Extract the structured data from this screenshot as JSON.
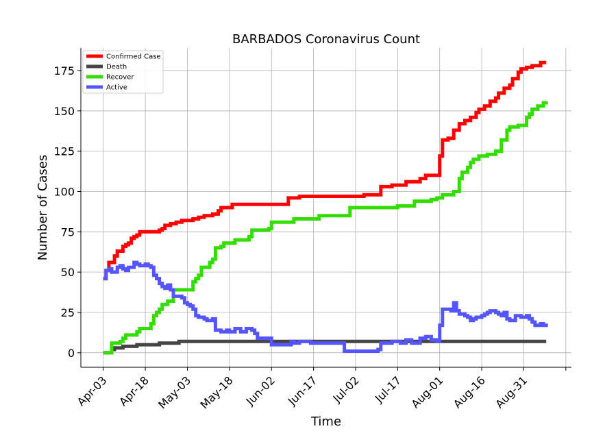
{
  "chart_data": {
    "type": "line",
    "title": "BARBADOS Coronavirus Count",
    "xlabel": "Time",
    "ylabel": "Number of Cases",
    "x_range": [
      "2020-03-26",
      "2020-09-17"
    ],
    "ylim": [
      -9,
      189
    ],
    "x_ticks": [
      {
        "date": "2020-04-03",
        "label": "Apr-03"
      },
      {
        "date": "2020-04-18",
        "label": "Apr-18"
      },
      {
        "date": "2020-05-03",
        "label": "May-03"
      },
      {
        "date": "2020-05-18",
        "label": "May-18"
      },
      {
        "date": "2020-06-02",
        "label": "Jun-02"
      },
      {
        "date": "2020-06-17",
        "label": "Jun-17"
      },
      {
        "date": "2020-07-02",
        "label": "Jul-02"
      },
      {
        "date": "2020-07-17",
        "label": "Jul-17"
      },
      {
        "date": "2020-08-01",
        "label": "Aug-01"
      },
      {
        "date": "2020-08-16",
        "label": "Aug-16"
      },
      {
        "date": "2020-08-31",
        "label": "Aug-31"
      }
    ],
    "y_ticks": [
      0,
      25,
      50,
      75,
      100,
      125,
      150,
      175
    ],
    "grid": true,
    "legend_position": "top-left",
    "series": [
      {
        "name": "Confirmed Case",
        "color": "#ff0000",
        "points": [
          [
            "2020-04-03",
            46
          ],
          [
            "2020-04-04",
            51
          ],
          [
            "2020-04-05",
            56
          ],
          [
            "2020-04-07",
            60
          ],
          [
            "2020-04-08",
            63
          ],
          [
            "2020-04-09",
            63
          ],
          [
            "2020-04-10",
            66
          ],
          [
            "2020-04-11",
            67
          ],
          [
            "2020-04-12",
            68
          ],
          [
            "2020-04-13",
            71
          ],
          [
            "2020-04-14",
            72
          ],
          [
            "2020-04-15",
            73
          ],
          [
            "2020-04-16",
            75
          ],
          [
            "2020-04-20",
            75
          ],
          [
            "2020-04-22",
            75
          ],
          [
            "2020-04-23",
            76
          ],
          [
            "2020-04-24",
            77
          ],
          [
            "2020-04-25",
            79
          ],
          [
            "2020-04-27",
            80
          ],
          [
            "2020-04-29",
            81
          ],
          [
            "2020-05-01",
            82
          ],
          [
            "2020-05-05",
            83
          ],
          [
            "2020-05-07",
            84
          ],
          [
            "2020-05-09",
            85
          ],
          [
            "2020-05-12",
            86
          ],
          [
            "2020-05-14",
            88
          ],
          [
            "2020-05-15",
            90
          ],
          [
            "2020-05-19",
            92
          ],
          [
            "2020-05-30",
            92
          ],
          [
            "2020-06-06",
            92
          ],
          [
            "2020-06-08",
            96
          ],
          [
            "2020-06-12",
            97
          ],
          [
            "2020-06-21",
            97
          ],
          [
            "2020-07-05",
            98
          ],
          [
            "2020-07-11",
            103
          ],
          [
            "2020-07-15",
            104
          ],
          [
            "2020-07-20",
            106
          ],
          [
            "2020-07-25",
            108
          ],
          [
            "2020-07-27",
            110
          ],
          [
            "2020-07-31",
            110
          ],
          [
            "2020-08-01",
            122
          ],
          [
            "2020-08-02",
            132
          ],
          [
            "2020-08-04",
            133
          ],
          [
            "2020-08-06",
            138
          ],
          [
            "2020-08-08",
            142
          ],
          [
            "2020-08-10",
            144
          ],
          [
            "2020-08-12",
            146
          ],
          [
            "2020-08-14",
            149
          ],
          [
            "2020-08-15",
            151
          ],
          [
            "2020-08-17",
            153
          ],
          [
            "2020-08-19",
            156
          ],
          [
            "2020-08-21",
            158
          ],
          [
            "2020-08-22",
            161
          ],
          [
            "2020-08-24",
            164
          ],
          [
            "2020-08-26",
            166
          ],
          [
            "2020-08-27",
            170
          ],
          [
            "2020-08-29",
            174
          ],
          [
            "2020-08-30",
            176
          ],
          [
            "2020-09-01",
            177
          ],
          [
            "2020-09-03",
            178
          ],
          [
            "2020-09-06",
            180
          ],
          [
            "2020-09-08",
            180
          ]
        ]
      },
      {
        "name": "Death",
        "color": "#444444",
        "points": [
          [
            "2020-04-03",
            0
          ],
          [
            "2020-04-04",
            0
          ],
          [
            "2020-04-06",
            2
          ],
          [
            "2020-04-07",
            3
          ],
          [
            "2020-04-10",
            4
          ],
          [
            "2020-04-15",
            5
          ],
          [
            "2020-04-23",
            6
          ],
          [
            "2020-04-30",
            7
          ],
          [
            "2020-05-15",
            7
          ],
          [
            "2020-06-15",
            7
          ],
          [
            "2020-07-15",
            7
          ],
          [
            "2020-08-15",
            7
          ],
          [
            "2020-09-08",
            7
          ]
        ]
      },
      {
        "name": "Recover",
        "color": "#33dd00",
        "points": [
          [
            "2020-04-03",
            0
          ],
          [
            "2020-04-05",
            0
          ],
          [
            "2020-04-06",
            6
          ],
          [
            "2020-04-09",
            7
          ],
          [
            "2020-04-10",
            9
          ],
          [
            "2020-04-11",
            11
          ],
          [
            "2020-04-15",
            13
          ],
          [
            "2020-04-16",
            15
          ],
          [
            "2020-04-19",
            15
          ],
          [
            "2020-04-20",
            18
          ],
          [
            "2020-04-21",
            23
          ],
          [
            "2020-04-22",
            25
          ],
          [
            "2020-04-23",
            27
          ],
          [
            "2020-04-24",
            30
          ],
          [
            "2020-04-26",
            32
          ],
          [
            "2020-04-28",
            35
          ],
          [
            "2020-04-28",
            39
          ],
          [
            "2020-05-04",
            39
          ],
          [
            "2020-05-05",
            44
          ],
          [
            "2020-05-06",
            46
          ],
          [
            "2020-05-07",
            48
          ],
          [
            "2020-05-08",
            53
          ],
          [
            "2020-05-11",
            56
          ],
          [
            "2020-05-12",
            58
          ],
          [
            "2020-05-13",
            65
          ],
          [
            "2020-05-15",
            66
          ],
          [
            "2020-05-16",
            68
          ],
          [
            "2020-05-20",
            70
          ],
          [
            "2020-05-25",
            72
          ],
          [
            "2020-05-26",
            76
          ],
          [
            "2020-06-01",
            77
          ],
          [
            "2020-06-02",
            81
          ],
          [
            "2020-06-10",
            83
          ],
          [
            "2020-06-19",
            85
          ],
          [
            "2020-06-30",
            90
          ],
          [
            "2020-07-16",
            90
          ],
          [
            "2020-07-17",
            91
          ],
          [
            "2020-07-23",
            94
          ],
          [
            "2020-07-29",
            95
          ],
          [
            "2020-07-31",
            96
          ],
          [
            "2020-08-02",
            98
          ],
          [
            "2020-08-06",
            100
          ],
          [
            "2020-08-08",
            108
          ],
          [
            "2020-08-09",
            112
          ],
          [
            "2020-08-11",
            115
          ],
          [
            "2020-08-12",
            118
          ],
          [
            "2020-08-13",
            120
          ],
          [
            "2020-08-15",
            122
          ],
          [
            "2020-08-18",
            123
          ],
          [
            "2020-08-21",
            125
          ],
          [
            "2020-08-23",
            132
          ],
          [
            "2020-08-25",
            138
          ],
          [
            "2020-08-26",
            140
          ],
          [
            "2020-08-29",
            141
          ],
          [
            "2020-09-01",
            146
          ],
          [
            "2020-09-02",
            148
          ],
          [
            "2020-09-03",
            151
          ],
          [
            "2020-09-05",
            153
          ],
          [
            "2020-09-07",
            155
          ],
          [
            "2020-09-08",
            156
          ]
        ]
      },
      {
        "name": "Active",
        "color": "#5555ff",
        "points": [
          [
            "2020-04-03",
            46
          ],
          [
            "2020-04-04",
            51
          ],
          [
            "2020-04-05",
            52
          ],
          [
            "2020-04-06",
            50
          ],
          [
            "2020-04-07",
            50
          ],
          [
            "2020-04-08",
            53
          ],
          [
            "2020-04-09",
            54
          ],
          [
            "2020-04-10",
            52
          ],
          [
            "2020-04-11",
            51
          ],
          [
            "2020-04-12",
            53
          ],
          [
            "2020-04-14",
            56
          ],
          [
            "2020-04-15",
            55
          ],
          [
            "2020-04-16",
            54
          ],
          [
            "2020-04-18",
            55
          ],
          [
            "2020-04-19",
            54
          ],
          [
            "2020-04-20",
            53
          ],
          [
            "2020-04-21",
            48
          ],
          [
            "2020-04-22",
            46
          ],
          [
            "2020-04-23",
            43
          ],
          [
            "2020-04-24",
            41
          ],
          [
            "2020-04-25",
            40
          ],
          [
            "2020-04-26",
            42
          ],
          [
            "2020-04-27",
            39
          ],
          [
            "2020-04-28",
            35
          ],
          [
            "2020-05-01",
            34
          ],
          [
            "2020-05-02",
            31
          ],
          [
            "2020-05-03",
            30
          ],
          [
            "2020-05-04",
            29
          ],
          [
            "2020-05-05",
            27
          ],
          [
            "2020-05-06",
            23
          ],
          [
            "2020-05-07",
            22
          ],
          [
            "2020-05-09",
            21
          ],
          [
            "2020-05-10",
            20
          ],
          [
            "2020-05-12",
            21
          ],
          [
            "2020-05-13",
            14
          ],
          [
            "2020-05-15",
            13
          ],
          [
            "2020-05-16",
            13
          ],
          [
            "2020-05-17",
            14
          ],
          [
            "2020-05-18",
            13
          ],
          [
            "2020-05-20",
            15
          ],
          [
            "2020-05-22",
            13
          ],
          [
            "2020-05-24",
            15
          ],
          [
            "2020-05-26",
            14
          ],
          [
            "2020-05-27",
            12
          ],
          [
            "2020-05-28",
            9
          ],
          [
            "2020-06-01",
            9
          ],
          [
            "2020-06-02",
            5
          ],
          [
            "2020-06-08",
            5
          ],
          [
            "2020-06-09",
            7
          ],
          [
            "2020-06-10",
            6
          ],
          [
            "2020-06-12",
            7
          ],
          [
            "2020-06-16",
            6
          ],
          [
            "2020-06-19",
            6
          ],
          [
            "2020-06-26",
            6
          ],
          [
            "2020-06-28",
            1
          ],
          [
            "2020-07-03",
            1
          ],
          [
            "2020-07-04",
            1
          ],
          [
            "2020-07-10",
            2
          ],
          [
            "2020-07-11",
            6
          ],
          [
            "2020-07-15",
            7
          ],
          [
            "2020-07-16",
            7
          ],
          [
            "2020-07-18",
            6
          ],
          [
            "2020-07-20",
            8
          ],
          [
            "2020-07-22",
            6
          ],
          [
            "2020-07-23",
            6
          ],
          [
            "2020-07-25",
            9
          ],
          [
            "2020-07-27",
            10
          ],
          [
            "2020-07-29",
            8
          ],
          [
            "2020-07-31",
            7
          ],
          [
            "2020-08-01",
            17
          ],
          [
            "2020-08-02",
            27
          ],
          [
            "2020-08-05",
            26
          ],
          [
            "2020-08-06",
            31
          ],
          [
            "2020-08-07",
            26
          ],
          [
            "2020-08-08",
            24
          ],
          [
            "2020-08-09",
            24
          ],
          [
            "2020-08-10",
            23
          ],
          [
            "2020-08-11",
            22
          ],
          [
            "2020-08-12",
            20
          ],
          [
            "2020-08-13",
            21
          ],
          [
            "2020-08-14",
            22
          ],
          [
            "2020-08-16",
            23
          ],
          [
            "2020-08-17",
            24
          ],
          [
            "2020-08-18",
            25
          ],
          [
            "2020-08-19",
            26
          ],
          [
            "2020-08-21",
            25
          ],
          [
            "2020-08-22",
            24
          ],
          [
            "2020-08-23",
            23
          ],
          [
            "2020-08-24",
            25
          ],
          [
            "2020-08-25",
            21
          ],
          [
            "2020-08-26",
            20
          ],
          [
            "2020-08-27",
            20
          ],
          [
            "2020-08-28",
            23
          ],
          [
            "2020-08-30",
            22
          ],
          [
            "2020-09-01",
            23
          ],
          [
            "2020-09-02",
            21
          ],
          [
            "2020-09-03",
            19
          ],
          [
            "2020-09-04",
            17
          ],
          [
            "2020-09-06",
            18
          ],
          [
            "2020-09-07",
            17
          ],
          [
            "2020-09-08",
            16
          ]
        ]
      }
    ]
  }
}
